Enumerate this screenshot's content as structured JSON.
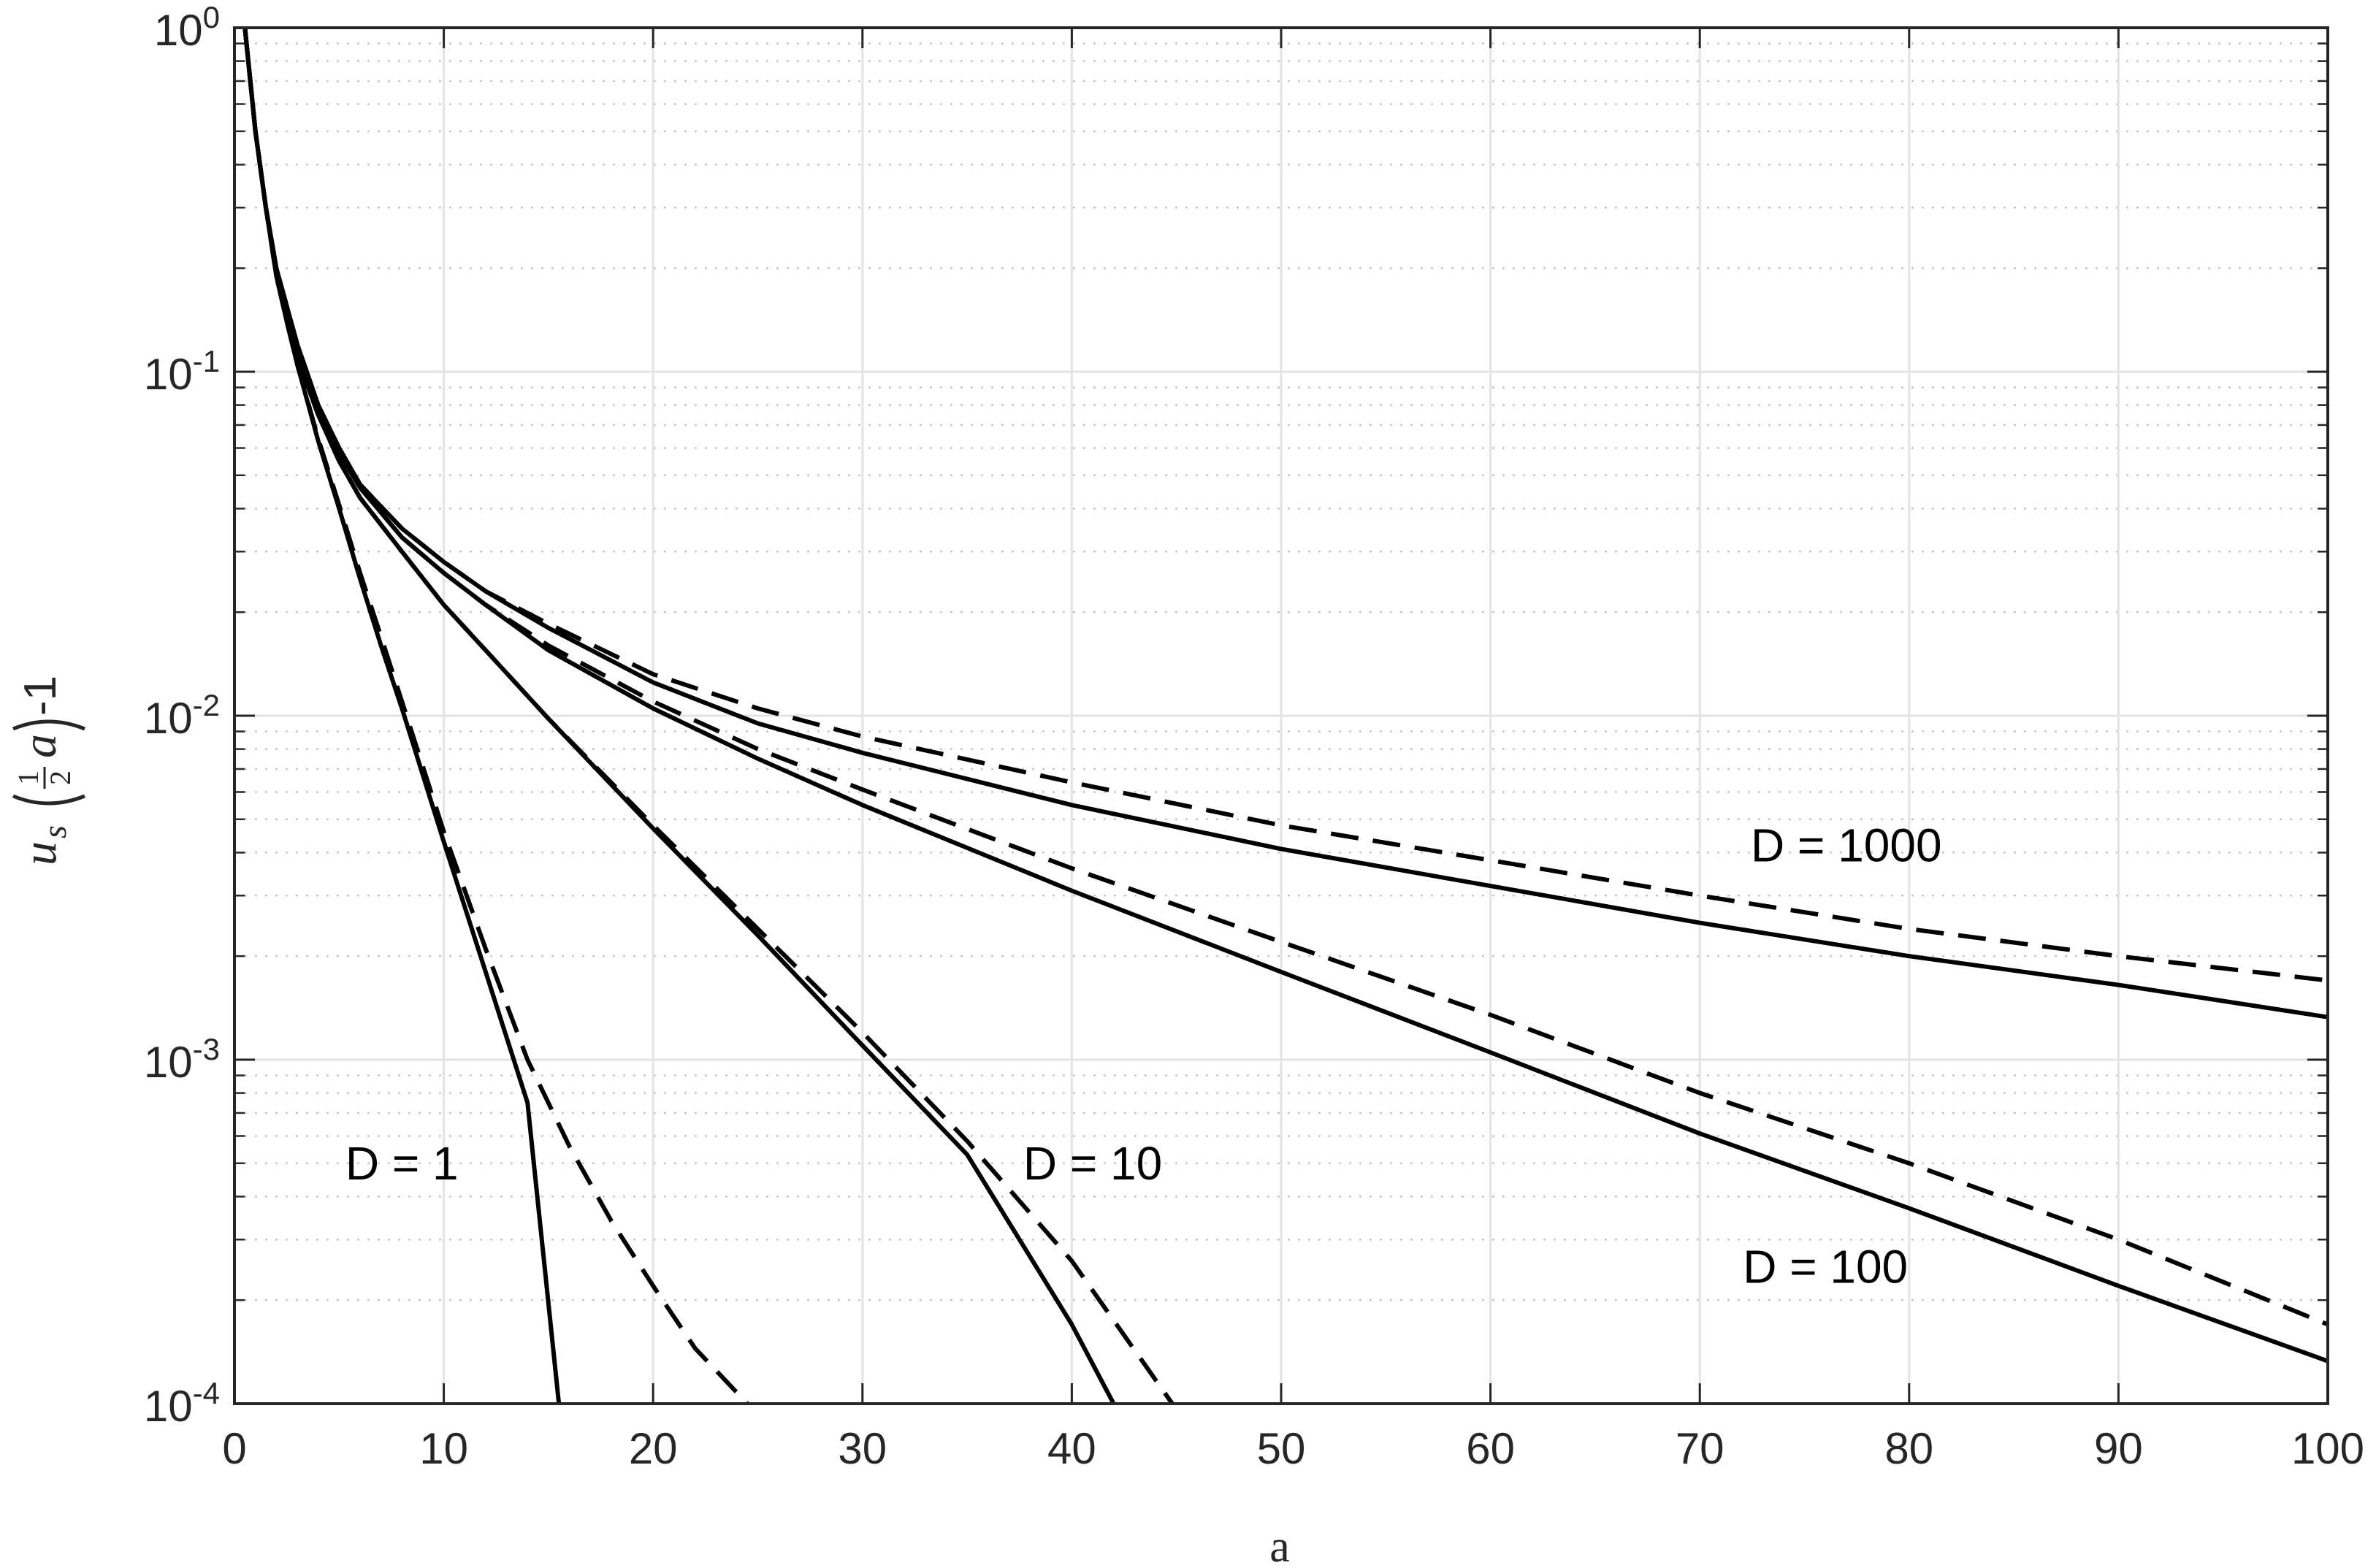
{
  "chart_data": {
    "type": "line",
    "xlabel": "a",
    "ylabel": {
      "main": "u",
      "sub": "s",
      "frac_num": "1",
      "frac_den": "2",
      "arg": "a",
      "suffix": "-1"
    },
    "xlim": [
      0,
      100
    ],
    "ylim": [
      0.0001,
      1
    ],
    "yscale": "log",
    "grid": true,
    "minor_grid": true,
    "x_ticks": [
      "0",
      "10",
      "20",
      "30",
      "40",
      "50",
      "60",
      "70",
      "80",
      "90",
      "100"
    ],
    "x_tick_values": [
      0,
      10,
      20,
      30,
      40,
      50,
      60,
      70,
      80,
      90,
      100
    ],
    "y_ticks": [
      {
        "value": 0.0001,
        "base": "10",
        "exp": "-4"
      },
      {
        "value": 0.001,
        "base": "10",
        "exp": "-3"
      },
      {
        "value": 0.01,
        "base": "10",
        "exp": "-2"
      },
      {
        "value": 0.1,
        "base": "10",
        "exp": "-1"
      },
      {
        "value": 1,
        "base": "10",
        "exp": "0"
      }
    ],
    "series": [
      {
        "label": "D = 1",
        "style": "solid",
        "x": [
          0.5,
          1,
          1.5,
          2,
          2.5,
          3,
          4,
          5,
          6,
          7,
          8,
          10,
          12,
          14,
          15.5
        ],
        "y": [
          1.0,
          0.5,
          0.3,
          0.19,
          0.14,
          0.105,
          0.063,
          0.04,
          0.025,
          0.016,
          0.0105,
          0.0043,
          0.0018,
          0.00075,
          0.0001
        ]
      },
      {
        "label": "D = 1",
        "style": "dashed",
        "x": [
          0.5,
          1,
          1.5,
          2,
          2.5,
          3,
          4,
          5,
          6,
          7,
          8,
          10,
          12,
          14,
          16,
          18,
          20,
          22,
          24.5
        ],
        "y": [
          1.0,
          0.5,
          0.3,
          0.19,
          0.14,
          0.105,
          0.064,
          0.041,
          0.026,
          0.017,
          0.011,
          0.0046,
          0.0021,
          0.001,
          0.00056,
          0.00034,
          0.00022,
          0.000145,
          0.0001
        ]
      },
      {
        "label": "D = 10",
        "style": "solid",
        "x": [
          0.5,
          1,
          1.5,
          2,
          2.5,
          3,
          4,
          5,
          6,
          8,
          10,
          12,
          15,
          20,
          25,
          30,
          35,
          40,
          42
        ],
        "y": [
          1.0,
          0.5,
          0.3,
          0.2,
          0.145,
          0.11,
          0.075,
          0.055,
          0.043,
          0.03,
          0.021,
          0.0155,
          0.0098,
          0.0047,
          0.0023,
          0.0011,
          0.00053,
          0.00017,
          0.0001
        ]
      },
      {
        "label": "D = 10",
        "style": "dashed",
        "x": [
          0.5,
          1,
          1.5,
          2,
          2.5,
          3,
          4,
          5,
          6,
          8,
          10,
          12,
          15,
          20,
          25,
          30,
          35,
          40,
          44.8
        ],
        "y": [
          1.0,
          0.5,
          0.3,
          0.2,
          0.145,
          0.11,
          0.075,
          0.055,
          0.043,
          0.03,
          0.021,
          0.0155,
          0.0098,
          0.0048,
          0.0024,
          0.0012,
          0.00058,
          0.00026,
          0.0001
        ]
      },
      {
        "label": "D = 100",
        "style": "solid",
        "x": [
          0.5,
          1,
          1.5,
          2,
          3,
          4,
          5,
          6,
          8,
          10,
          12,
          15,
          20,
          25,
          30,
          40,
          50,
          60,
          70,
          80,
          90,
          100
        ],
        "y": [
          1.0,
          0.5,
          0.3,
          0.2,
          0.12,
          0.08,
          0.058,
          0.046,
          0.033,
          0.026,
          0.021,
          0.0155,
          0.0105,
          0.0075,
          0.0055,
          0.0031,
          0.0018,
          0.00105,
          0.00061,
          0.00037,
          0.00022,
          0.000133
        ]
      },
      {
        "label": "D = 100",
        "style": "dashed",
        "x": [
          0.5,
          1,
          1.5,
          2,
          3,
          4,
          5,
          6,
          8,
          10,
          12,
          15,
          20,
          25,
          30,
          40,
          50,
          60,
          70,
          80,
          90,
          100
        ],
        "y": [
          1.0,
          0.5,
          0.3,
          0.2,
          0.12,
          0.08,
          0.058,
          0.046,
          0.033,
          0.026,
          0.021,
          0.016,
          0.011,
          0.008,
          0.0061,
          0.0036,
          0.0022,
          0.00135,
          0.0008,
          0.0005,
          0.0003,
          0.00017
        ]
      },
      {
        "label": "D = 1000",
        "style": "solid",
        "x": [
          0.5,
          1,
          1.5,
          2,
          3,
          4,
          5,
          6,
          8,
          10,
          12,
          15,
          20,
          25,
          30,
          40,
          50,
          60,
          70,
          80,
          90,
          100
        ],
        "y": [
          1.0,
          0.5,
          0.3,
          0.2,
          0.12,
          0.08,
          0.06,
          0.047,
          0.035,
          0.028,
          0.023,
          0.018,
          0.0125,
          0.0095,
          0.0078,
          0.0055,
          0.0041,
          0.0032,
          0.0025,
          0.002,
          0.00165,
          0.00133
        ]
      },
      {
        "label": "D = 1000",
        "style": "dashed",
        "x": [
          0.5,
          1,
          1.5,
          2,
          3,
          4,
          5,
          6,
          8,
          10,
          12,
          15,
          20,
          25,
          30,
          40,
          50,
          60,
          70,
          80,
          90,
          100
        ],
        "y": [
          1.0,
          0.5,
          0.3,
          0.2,
          0.12,
          0.08,
          0.06,
          0.047,
          0.035,
          0.028,
          0.023,
          0.0185,
          0.0132,
          0.0105,
          0.0087,
          0.0064,
          0.0048,
          0.0038,
          0.003,
          0.0024,
          0.002,
          0.0017
        ]
      }
    ],
    "annotations": [
      {
        "text": "D = 1",
        "x": 8,
        "y": 0.0005
      },
      {
        "text": "D = 10",
        "x": 41,
        "y": 0.0005
      },
      {
        "text": "D = 100",
        "x": 76,
        "y": 0.00025
      },
      {
        "text": "D = 1000",
        "x": 77,
        "y": 0.0042
      }
    ]
  }
}
